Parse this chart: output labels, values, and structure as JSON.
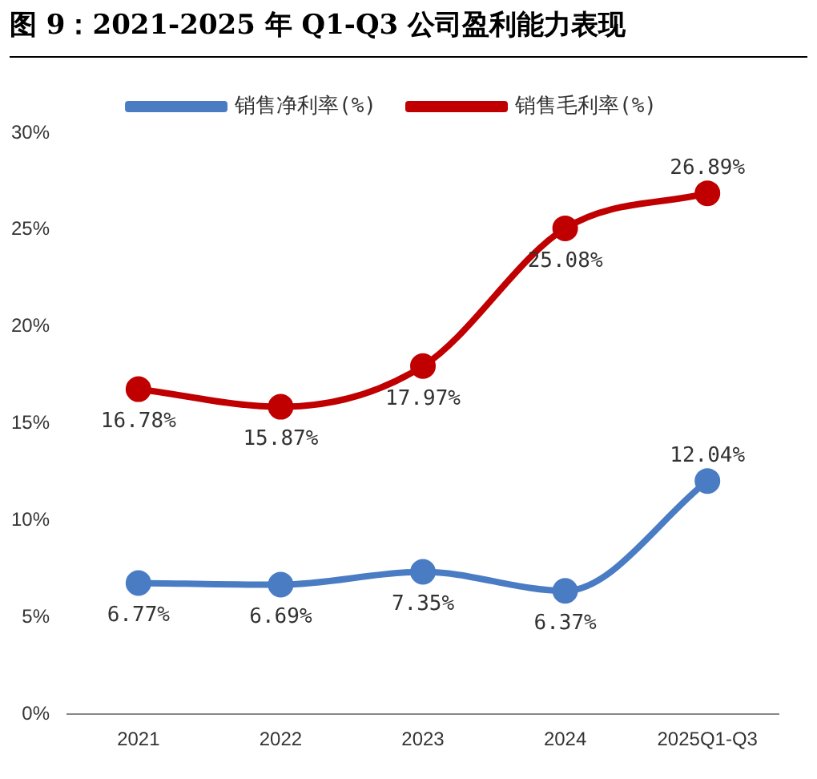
{
  "chart_data": {
    "type": "line",
    "title": "图 9：2021-2025 年 Q1-Q3 公司盈利能力表现",
    "categories": [
      "2021",
      "2022",
      "2023",
      "2024",
      "2025Q1-Q3"
    ],
    "series": [
      {
        "name": "销售净利率(%)",
        "color": "#4a7cc4",
        "values": [
          6.77,
          6.69,
          7.35,
          6.37,
          12.04
        ],
        "value_labels": [
          "6.77%",
          "6.69%",
          "7.35%",
          "6.37%",
          "12.04%"
        ]
      },
      {
        "name": "销售毛利率(%)",
        "color": "#c00000",
        "values": [
          16.78,
          15.87,
          17.97,
          25.08,
          26.89
        ],
        "value_labels": [
          "16.78%",
          "15.87%",
          "17.97%",
          "25.08%",
          "26.89%"
        ]
      }
    ],
    "ylim": [
      0,
      30
    ],
    "yticks": [
      {
        "value": 0,
        "label": "0%"
      },
      {
        "value": 5,
        "label": "5%"
      },
      {
        "value": 10,
        "label": "10%"
      },
      {
        "value": 15,
        "label": "15%"
      },
      {
        "value": 20,
        "label": "20%"
      },
      {
        "value": 25,
        "label": "25%"
      },
      {
        "value": 30,
        "label": "30%"
      }
    ],
    "grid": false,
    "legend": "top",
    "marker": "circle",
    "line_style": "solid"
  }
}
